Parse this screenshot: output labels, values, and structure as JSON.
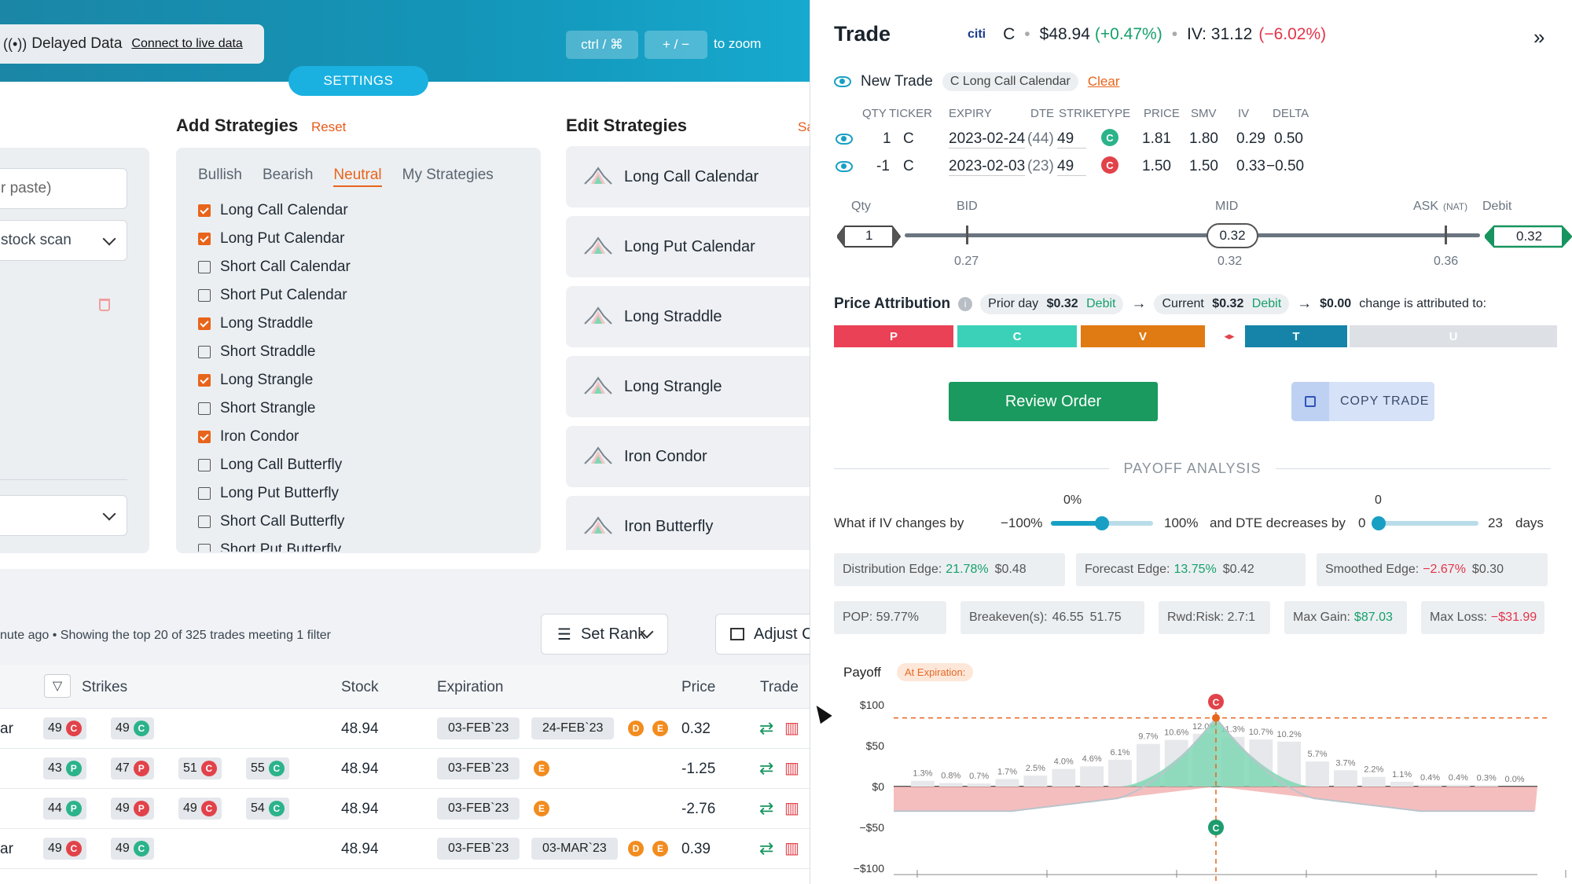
{
  "top": {
    "delayed_label": "Delayed Data",
    "connect_link": "Connect to live data",
    "zoom_key1": "ctrl / ⌘",
    "zoom_key2": "+ / −",
    "zoom_text": "to zoom",
    "settings": "SETTINGS"
  },
  "filters": {
    "paste_placeholder": "r paste)",
    "scan_select": "stock scan"
  },
  "add_strategies": {
    "title": "Add Strategies",
    "reset": "Reset",
    "tabs": [
      "Bullish",
      "Bearish",
      "Neutral",
      "My Strategies"
    ],
    "active_tab": "Neutral",
    "items": [
      {
        "label": "Long Call Calendar",
        "checked": true
      },
      {
        "label": "Long Put Calendar",
        "checked": true
      },
      {
        "label": "Short Call Calendar",
        "checked": false
      },
      {
        "label": "Short Put Calendar",
        "checked": false
      },
      {
        "label": "Long Straddle",
        "checked": true
      },
      {
        "label": "Short Straddle",
        "checked": false
      },
      {
        "label": "Long Strangle",
        "checked": true
      },
      {
        "label": "Short Strangle",
        "checked": false
      },
      {
        "label": "Iron Condor",
        "checked": true
      },
      {
        "label": "Long Call Butterfly",
        "checked": false
      },
      {
        "label": "Long Put Butterfly",
        "checked": false
      },
      {
        "label": "Short Call Butterfly",
        "checked": false
      },
      {
        "label": "Short Put Butterfly",
        "checked": false
      }
    ]
  },
  "edit_strategies": {
    "title": "Edit Strategies",
    "save": "Sa",
    "items": [
      "Long Call Calendar",
      "Long Put Calendar",
      "Long Straddle",
      "Long Strangle",
      "Iron Condor",
      "Iron Butterfly"
    ]
  },
  "results": {
    "status": "nute ago  •  Showing the top 20 of 325 trades meeting 1 filter",
    "set_rank": "Set Rank",
    "adjust": "Adjust C",
    "headers": {
      "strikes": "Strikes",
      "stock": "Stock",
      "expiration": "Expiration",
      "price": "Price",
      "trade": "Trade"
    },
    "rows": [
      {
        "name": "ar",
        "strikes": [
          {
            "v": "49",
            "t": "C",
            "c": "red"
          },
          {
            "v": "49",
            "t": "C",
            "c": "green"
          }
        ],
        "stock": "48.94",
        "exp": [
          "03-FEB`23",
          "24-FEB`23"
        ],
        "flags": [
          "D",
          "E"
        ],
        "price": "0.32"
      },
      {
        "name": "",
        "strikes": [
          {
            "v": "43",
            "t": "P",
            "c": "green"
          },
          {
            "v": "47",
            "t": "P",
            "c": "red"
          },
          {
            "v": "51",
            "t": "C",
            "c": "red"
          },
          {
            "v": "55",
            "t": "C",
            "c": "green"
          }
        ],
        "stock": "48.94",
        "exp": [
          "03-FEB`23"
        ],
        "flags": [
          "E"
        ],
        "price": "-1.25"
      },
      {
        "name": "",
        "strikes": [
          {
            "v": "44",
            "t": "P",
            "c": "green"
          },
          {
            "v": "49",
            "t": "P",
            "c": "red"
          },
          {
            "v": "49",
            "t": "C",
            "c": "red"
          },
          {
            "v": "54",
            "t": "C",
            "c": "green"
          }
        ],
        "stock": "48.94",
        "exp": [
          "03-FEB`23"
        ],
        "flags": [
          "E"
        ],
        "price": "-2.76"
      },
      {
        "name": "ar",
        "strikes": [
          {
            "v": "49",
            "t": "C",
            "c": "red"
          },
          {
            "v": "49",
            "t": "C",
            "c": "green"
          }
        ],
        "stock": "48.94",
        "exp": [
          "03-FEB`23",
          "03-MAR`23"
        ],
        "flags": [
          "D",
          "E"
        ],
        "price": "0.39"
      }
    ]
  },
  "trade": {
    "title": "Trade",
    "brand": "citi",
    "ticker": "C",
    "price": "$48.94",
    "change": "(+0.47%)",
    "iv": "IV: 31.12",
    "iv_change": "(−6.02%)",
    "new_trade": "New Trade",
    "strategy_chip": "C Long Call Calendar",
    "clear": "Clear",
    "leg_headers": [
      "QTY",
      "TICKER",
      "EXPIRY",
      "DTE",
      "STRIKE",
      "TYPE",
      "PRICE",
      "SMV",
      "IV",
      "DELTA"
    ],
    "legs": [
      {
        "qty": "1",
        "ticker": "C",
        "expiry": "2023-02-24",
        "dte": "(44)",
        "strike": "49",
        "type": "C",
        "type_color": "green",
        "price": "1.81",
        "smv": "1.80",
        "iv": "0.29",
        "delta": "0.50"
      },
      {
        "qty": "-1",
        "ticker": "C",
        "expiry": "2023-02-03",
        "dte": "(23)",
        "strike": "49",
        "type": "C",
        "type_color": "red",
        "price": "1.50",
        "smv": "1.50",
        "iv": "0.33",
        "delta": "−0.50"
      }
    ],
    "slider": {
      "qty_label": "Qty",
      "qty": "1",
      "bid_label": "BID",
      "mid_label": "MID",
      "ask_label": "ASK",
      "ask_sub": "(NAT)",
      "debit_label": "Debit",
      "mid_value": "0.32",
      "debit_value": "0.32",
      "bid": "0.27",
      "mid": "0.32",
      "ask": "0.36"
    },
    "price_attribution": {
      "label": "Price Attribution",
      "prior_day": "Prior day",
      "prior_value": "$0.32",
      "prior_type": "Debit",
      "current": "Current",
      "current_value": "$0.32",
      "current_type": "Debit",
      "change": "$0.00",
      "change_text": "change is attributed to:",
      "segments": [
        "P",
        "C",
        "V",
        "T",
        "U"
      ]
    },
    "review_order": "Review Order",
    "copy_trade": "COPY  TRADE",
    "payoff_analysis": "PAYOFF ANALYSIS",
    "whatif": {
      "label": "What if IV changes by",
      "iv_min": "−100%",
      "iv_max": "100%",
      "iv_value": "0%",
      "iv_level": 0.5,
      "dte_label": "and DTE decreases by",
      "dte_min": "0",
      "dte_max": "23",
      "dte_value": "0",
      "dte_unit": "days"
    },
    "stats": {
      "distribution_edge": "Distribution Edge:",
      "distribution_pct": "21.78%",
      "distribution_val": "$0.48",
      "forecast_edge": "Forecast Edge:",
      "forecast_pct": "13.75%",
      "forecast_val": "$0.42",
      "smoothed_edge": "Smoothed Edge:",
      "smoothed_pct": "−2.67%",
      "smoothed_val": "$0.30",
      "pop": "POP: 59.77%",
      "breakeven": "Breakeven(s):",
      "be1": "46.55",
      "be2": "51.75",
      "rwd": "Rwd:Risk: 2.7:1",
      "max_gain_label": "Max Gain:",
      "max_gain": "$87.03",
      "max_loss_label": "Max Loss:",
      "max_loss": "−$31.99"
    },
    "payoff": {
      "label": "Payoff",
      "at_exp": "At Expiration:"
    }
  },
  "chart_data": {
    "type": "area",
    "y_ticks": [
      "$100",
      "$50",
      "$0",
      "−$50",
      "−$100"
    ],
    "ylim": [
      -100,
      100
    ],
    "prob_labels": [
      "1.3%",
      "0.8%",
      "0.7%",
      "1.7%",
      "2.5%",
      "4.0%",
      "4.6%",
      "6.1%",
      "9.7%",
      "10.6%",
      "12.0%",
      "11.3%",
      "10.7%",
      "10.2%",
      "5.7%",
      "3.7%",
      "2.2%",
      "1.1%",
      "0.4%",
      "0.4%",
      "0.3%",
      "0.0%"
    ],
    "colors": {
      "profit": "#7fd7b4",
      "loss": "#f2a8a8",
      "marker_red": "#e2424a",
      "marker_green": "#1e9c6e",
      "hist": "#e6e8eb",
      "dash": "#e8641b"
    }
  }
}
